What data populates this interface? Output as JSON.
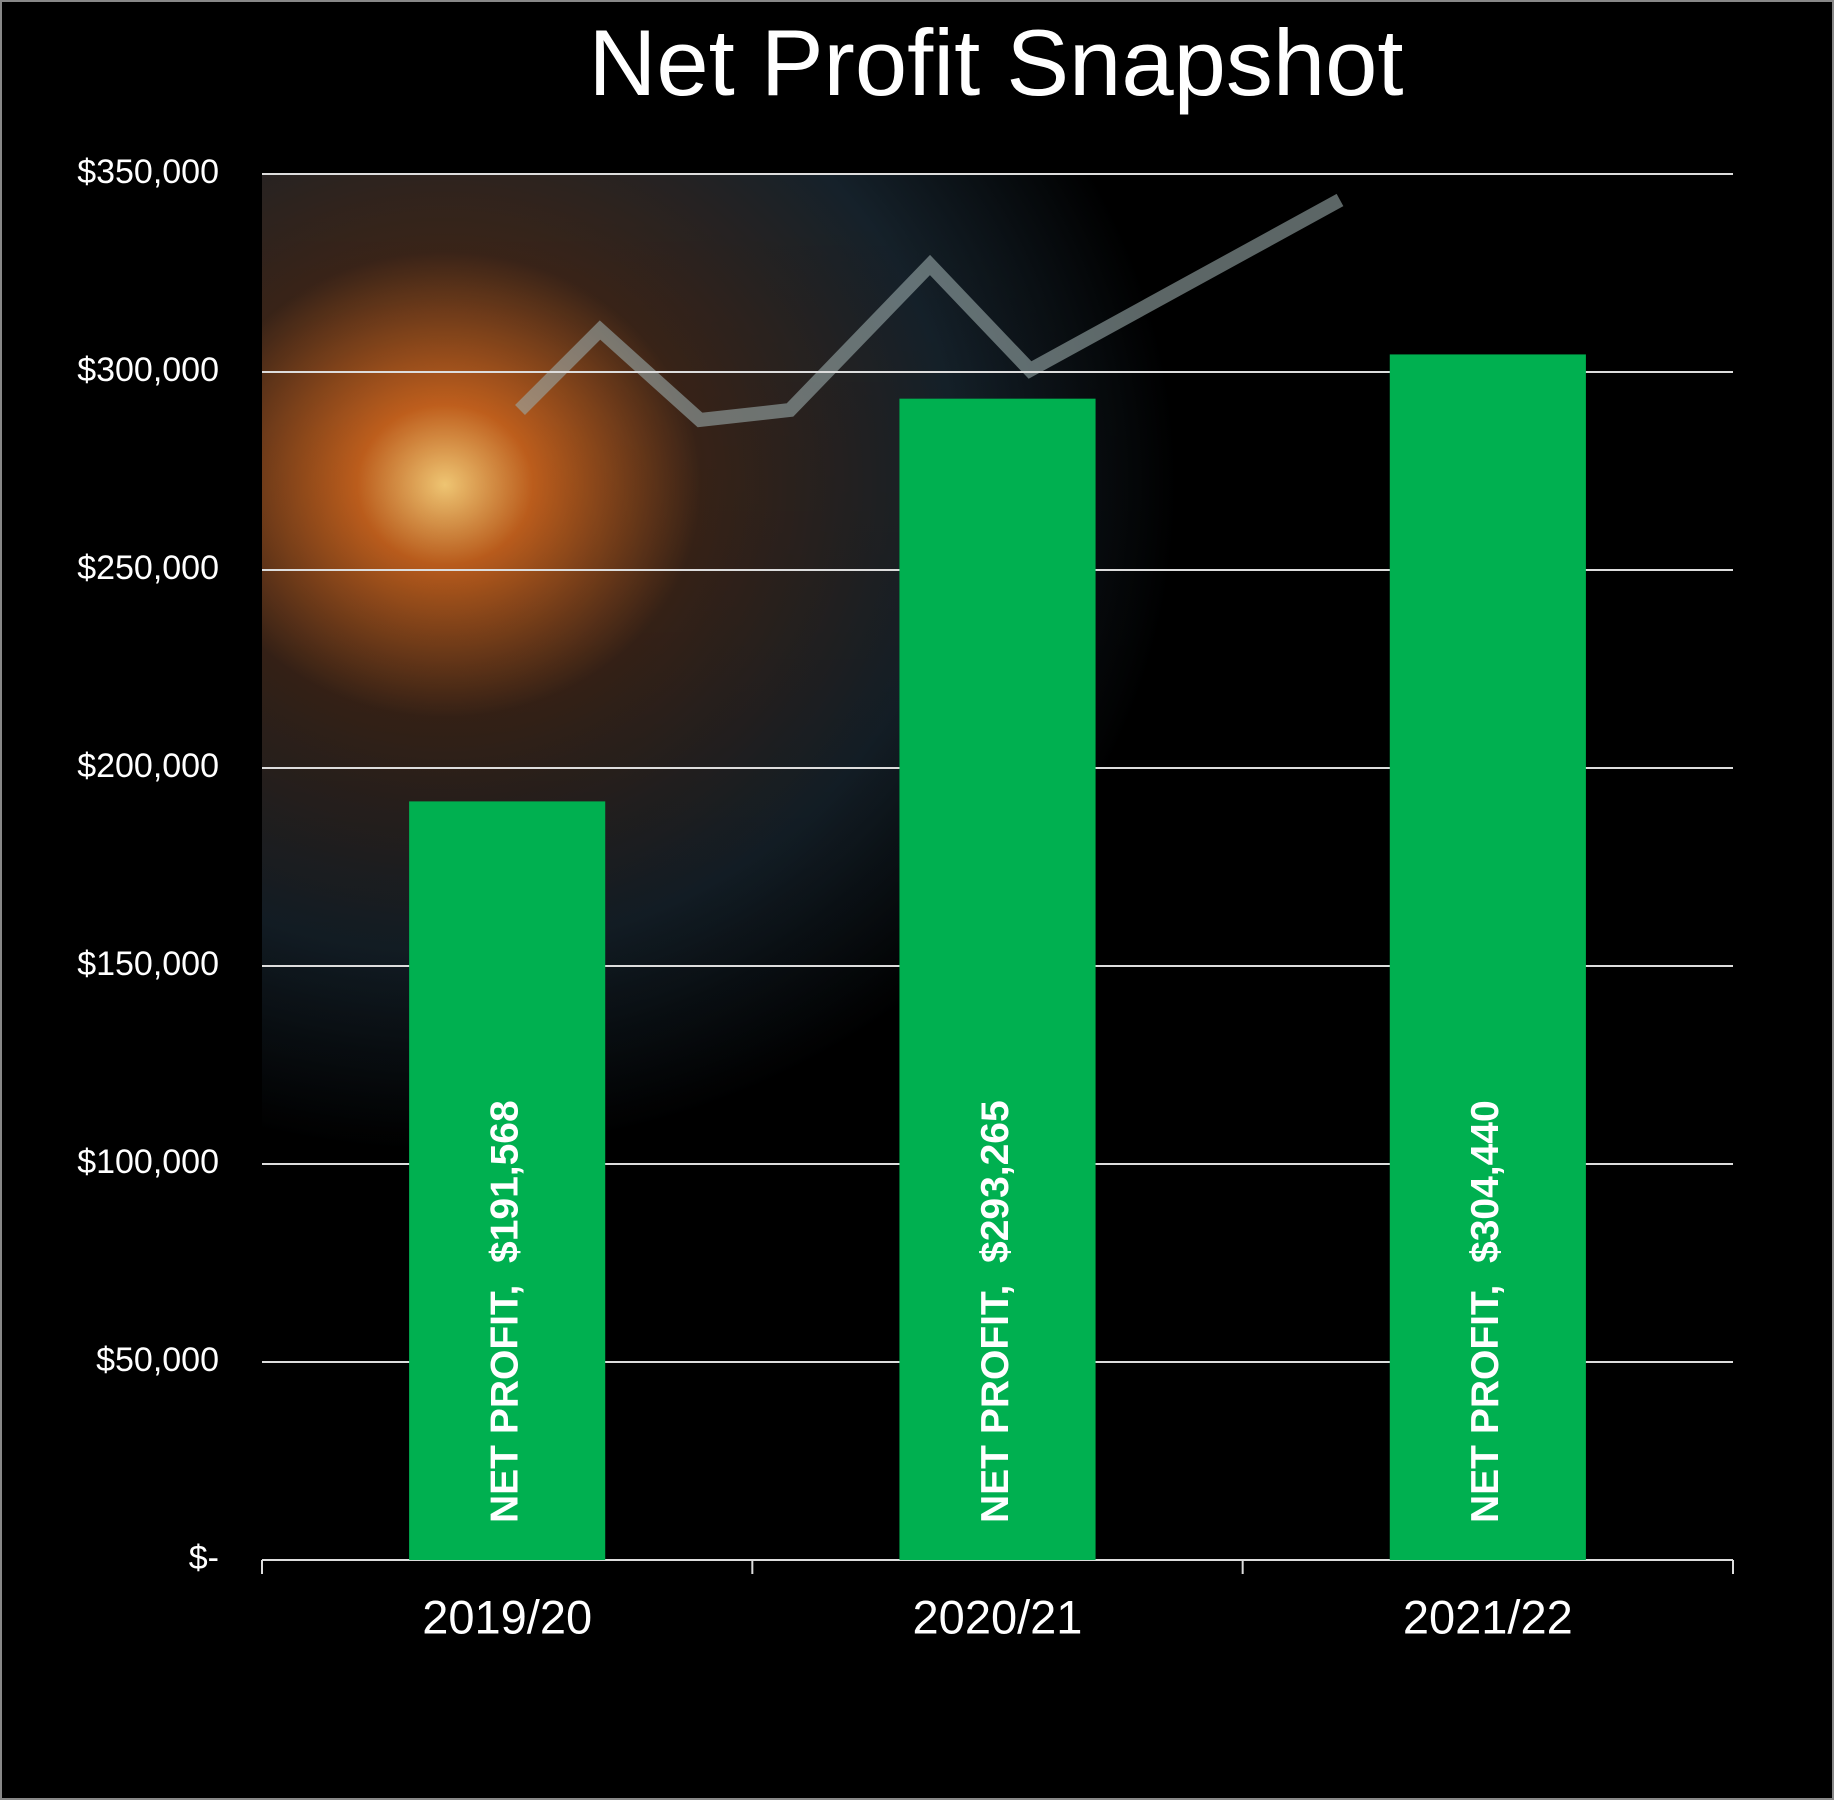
{
  "chart_data": {
    "type": "bar",
    "title": "Net Profit Snapshot",
    "categories": [
      "2019/20",
      "2020/21",
      "2021/22"
    ],
    "values": [
      191568,
      293265,
      304440
    ],
    "value_labels": [
      "NET PROFIT,  $191,568",
      "NET PROFIT,  $293,265",
      "NET PROFIT,  $304,440"
    ],
    "color": "#00b050",
    "ylim": [
      0,
      350000
    ],
    "yticks": [
      {
        "value": 0,
        "label": "$-"
      },
      {
        "value": 50000,
        "label": "$50,000"
      },
      {
        "value": 100000,
        "label": "$100,000"
      },
      {
        "value": 150000,
        "label": "$150,000"
      },
      {
        "value": 200000,
        "label": "$200,000"
      },
      {
        "value": 250000,
        "label": "$250,000"
      },
      {
        "value": 300000,
        "label": "$300,000"
      },
      {
        "value": 350000,
        "label": "$350,000"
      }
    ],
    "grid": true
  }
}
